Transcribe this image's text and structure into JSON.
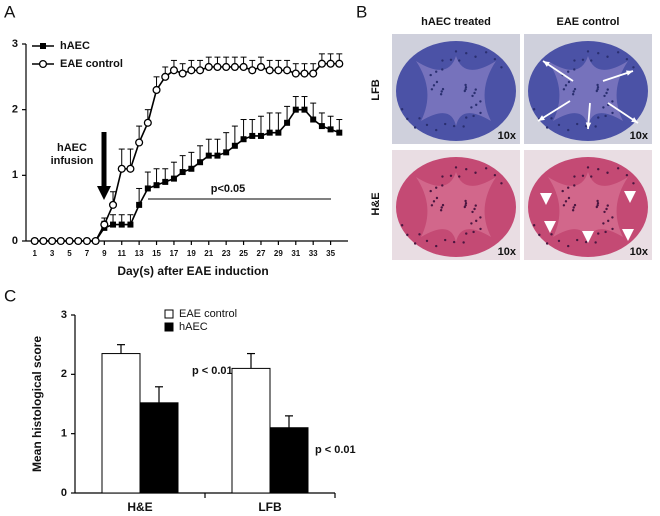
{
  "panel_labels": [
    "A",
    "B",
    "C"
  ],
  "chart_data": [
    {
      "type": "line",
      "x_label": "Day(s) after EAE induction",
      "x": [
        1,
        2,
        3,
        4,
        5,
        6,
        7,
        8,
        9,
        10,
        11,
        12,
        13,
        14,
        15,
        16,
        17,
        18,
        19,
        20,
        21,
        22,
        23,
        24,
        25,
        26,
        27,
        28,
        29,
        30,
        31,
        32,
        33,
        34,
        35,
        36
      ],
      "xlim": [
        0,
        37
      ],
      "xticks": [
        1,
        3,
        5,
        7,
        9,
        11,
        13,
        15,
        17,
        19,
        21,
        23,
        25,
        27,
        29,
        31,
        33,
        35
      ],
      "ylim": [
        0,
        3
      ],
      "yticks": [
        0,
        1,
        2,
        3
      ],
      "legend": "upper left",
      "series": [
        {
          "name": "hAEC",
          "color": "#000000",
          "marker": "square",
          "values": [
            0,
            0,
            0,
            0,
            0,
            0,
            0,
            0,
            0.2,
            0.25,
            0.25,
            0.25,
            0.55,
            0.8,
            0.85,
            0.9,
            0.95,
            1.05,
            1.1,
            1.2,
            1.3,
            1.3,
            1.35,
            1.45,
            1.55,
            1.6,
            1.6,
            1.65,
            1.65,
            1.8,
            2.0,
            2.0,
            1.85,
            1.75,
            1.7,
            1.65
          ],
          "errors": [
            0,
            0,
            0,
            0,
            0,
            0,
            0,
            0,
            0.1,
            0.15,
            0.15,
            0.15,
            0.25,
            0.25,
            0.25,
            0.2,
            0.25,
            0.25,
            0.25,
            0.25,
            0.25,
            0.25,
            0.3,
            0.3,
            0.3,
            0.25,
            0.3,
            0.3,
            0.3,
            0.25,
            0.2,
            0.2,
            0.25,
            0.2,
            0.2,
            0.2
          ]
        },
        {
          "name": "EAE control",
          "color": "#000000",
          "marker": "circle",
          "values": [
            0,
            0,
            0,
            0,
            0,
            0,
            0,
            0,
            0.25,
            0.55,
            1.1,
            1.1,
            1.5,
            1.8,
            2.3,
            2.5,
            2.6,
            2.55,
            2.6,
            2.6,
            2.65,
            2.65,
            2.65,
            2.65,
            2.65,
            2.6,
            2.65,
            2.6,
            2.6,
            2.6,
            2.55,
            2.55,
            2.55,
            2.7,
            2.7,
            2.7
          ],
          "errors": [
            0,
            0,
            0,
            0,
            0,
            0,
            0,
            0,
            0.1,
            0.2,
            0.3,
            0.3,
            0.25,
            0.2,
            0.2,
            0.15,
            0.15,
            0.15,
            0.15,
            0.15,
            0.15,
            0.15,
            0.15,
            0.15,
            0.15,
            0.15,
            0.15,
            0.15,
            0.15,
            0.15,
            0.15,
            0.15,
            0.15,
            0.15,
            0.15,
            0.15
          ]
        }
      ],
      "annotations": [
        "hAEC",
        "infusion",
        "p<0.05"
      ]
    },
    {
      "type": "bar",
      "y_label": "Mean histological score",
      "categories": [
        "H&E",
        "LFB"
      ],
      "ylim": [
        0,
        3
      ],
      "yticks": [
        0,
        1,
        2,
        3
      ],
      "legend": "upper center",
      "series": [
        {
          "name": "EAE control",
          "color": "#ffffff",
          "values": [
            2.35,
            2.1
          ],
          "errors": [
            0.15,
            0.25
          ]
        },
        {
          "name": "hAEC",
          "color": "#000000",
          "values": [
            1.52,
            1.1
          ],
          "errors": [
            0.27,
            0.2
          ]
        }
      ],
      "annotations": [
        "p < 0.01",
        "p < 0.01"
      ]
    }
  ],
  "panel_b": {
    "columns": [
      "hAEC treated",
      "EAE control"
    ],
    "rows": [
      "LFB",
      "H&E"
    ],
    "magnification": [
      "10x",
      "10x",
      "10x",
      "10x"
    ]
  }
}
